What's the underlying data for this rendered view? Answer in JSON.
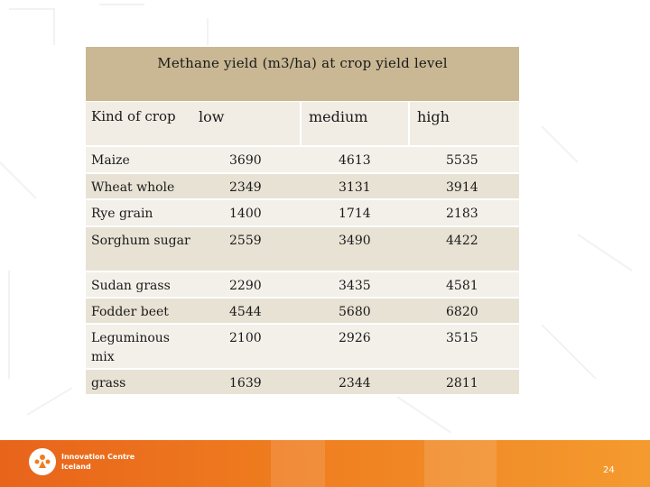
{
  "table": {
    "title": "Methane yield (m3/ha) at crop yield level",
    "headers": {
      "kind": "Kind of crop",
      "low": "low",
      "medium": "medium",
      "high": "high"
    },
    "rows": [
      {
        "crop": "Maize",
        "low": "3690",
        "medium": "4613",
        "high": "5535"
      },
      {
        "crop": "Wheat whole",
        "low": "2349",
        "medium": "3131",
        "high": "3914"
      },
      {
        "crop": "Rye grain",
        "low": "1400",
        "medium": "1714",
        "high": "2183"
      },
      {
        "crop": "Sorghum sugar",
        "low": "2559",
        "medium": "3490",
        "high": "4422"
      },
      {
        "crop": "Sudan grass",
        "low": "2290",
        "medium": "3435",
        "high": "4581"
      },
      {
        "crop": "Fodder beet",
        "low": "4544",
        "medium": "5680",
        "high": "6820"
      },
      {
        "crop": "Leguminous mix",
        "low": "2100",
        "medium": "2926",
        "high": "3515"
      },
      {
        "crop": "grass",
        "low": "1639",
        "medium": "2344",
        "high": "2811"
      }
    ]
  },
  "footer": {
    "logo_line1": "Innovation Centre",
    "logo_line2": "Iceland",
    "page_number": "24"
  },
  "colors": {
    "title_band": "#c9b893",
    "footer_orange": "#ef7d1f"
  }
}
